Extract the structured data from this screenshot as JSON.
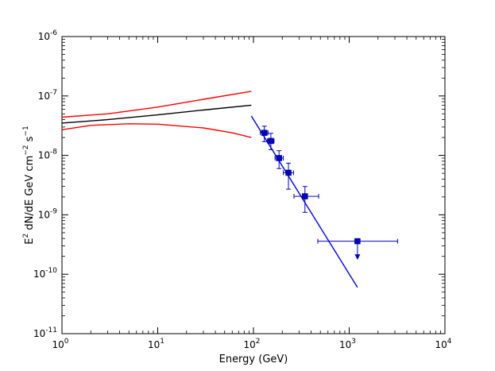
{
  "chart_data": {
    "type": "scatter",
    "title": "",
    "xlabel": "Energy (GeV)",
    "ylabel_parts": {
      "pre": "E",
      "sup1": "2",
      "mid": " dN/dE GeV cm",
      "sup2": "−2",
      "mid2": " s",
      "sup3": "−1"
    },
    "xscale": "log",
    "yscale": "log",
    "xlim": [
      1,
      10000
    ],
    "ylim": [
      1e-11,
      1e-06
    ],
    "x_ticks": [
      {
        "value": 1,
        "base": "10",
        "exp": "0"
      },
      {
        "value": 10,
        "base": "10",
        "exp": "1"
      },
      {
        "value": 100,
        "base": "10",
        "exp": "2"
      },
      {
        "value": 1000,
        "base": "10",
        "exp": "3"
      },
      {
        "value": 10000,
        "base": "10",
        "exp": "4"
      }
    ],
    "y_ticks": [
      {
        "value": 1e-06,
        "base": "10",
        "exp": "-6"
      },
      {
        "value": 1e-07,
        "base": "10",
        "exp": "-7"
      },
      {
        "value": 1e-08,
        "base": "10",
        "exp": "-8"
      },
      {
        "value": 1e-09,
        "base": "10",
        "exp": "-9"
      },
      {
        "value": 1e-10,
        "base": "10",
        "exp": "-10"
      },
      {
        "value": 1e-11,
        "base": "10",
        "exp": "-11"
      }
    ],
    "grid": false,
    "legend": "none",
    "curves": [
      {
        "color": "#ff0000",
        "x": [
          1,
          3,
          10,
          30,
          95
        ],
        "y": [
          4.4e-08,
          5e-08,
          6.5e-08,
          8.8e-08,
          1.2e-07
        ]
      },
      {
        "color": "#000000",
        "x": [
          1,
          3,
          10,
          30,
          95
        ],
        "y": [
          3.5e-08,
          4e-08,
          4.8e-08,
          5.8e-08,
          7e-08
        ]
      },
      {
        "color": "#ff0000",
        "x": [
          1,
          2,
          5,
          10,
          30,
          60,
          95
        ],
        "y": [
          2.7e-08,
          3.2e-08,
          3.4e-08,
          3.35e-08,
          2.9e-08,
          2.4e-08,
          2e-08
        ]
      },
      {
        "color": "#0000ff",
        "x": [
          95,
          1220
        ],
        "y": [
          4.6e-08,
          6e-11
        ]
      }
    ],
    "points": [
      {
        "x": 130,
        "y": 2.4e-08,
        "xerr": [
          118,
          142
        ],
        "yerr": [
          1.7e-08,
          3.1e-08
        ]
      },
      {
        "x": 152,
        "y": 1.75e-08,
        "xerr": [
          140,
          164
        ],
        "yerr": [
          1.25e-08,
          2.35e-08
        ]
      },
      {
        "x": 185,
        "y": 9e-09,
        "xerr": [
          168,
          205
        ],
        "yerr": [
          6e-09,
          1.2e-08
        ]
      },
      {
        "x": 232,
        "y": 5.1e-09,
        "xerr": [
          205,
          262
        ],
        "yerr": [
          2.7e-09,
          7.4e-09
        ]
      },
      {
        "x": 345,
        "y": 2.05e-09,
        "xerr": [
          265,
          480
        ],
        "yerr": [
          1.1e-09,
          3e-09
        ]
      }
    ],
    "upper_limits": [
      {
        "x": 1220,
        "y": 3.6e-10,
        "xerr": [
          470,
          3200
        ],
        "arrow_to": 1.8e-10
      }
    ],
    "point_color": "#0000cc"
  }
}
